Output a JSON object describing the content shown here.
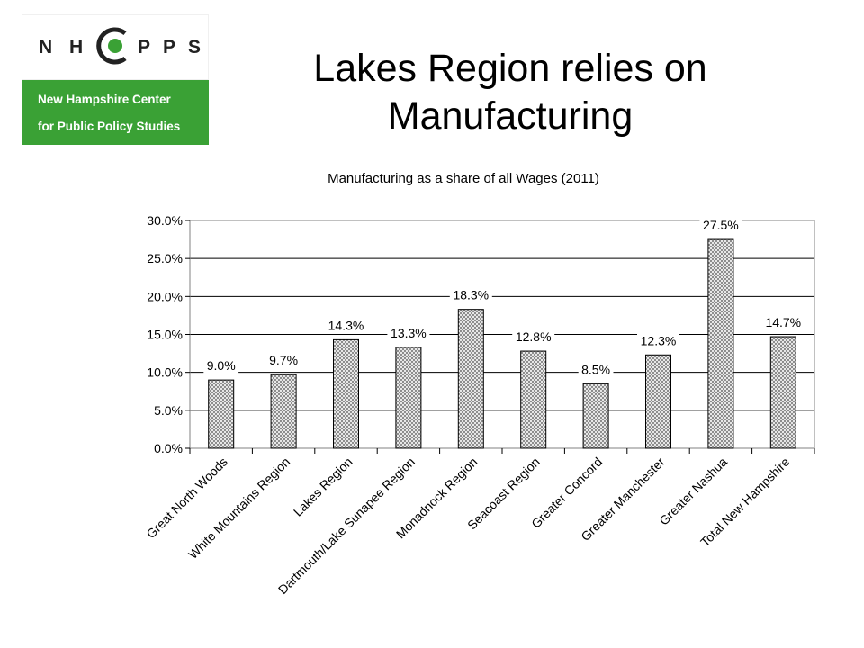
{
  "logo": {
    "letters": [
      "N",
      "H",
      "P",
      "P",
      "S"
    ],
    "line1": "New Hampshire Center",
    "line2": "for Public Policy Studies",
    "accent_color": "#3aa135"
  },
  "slide_title": "Lakes Region relies on Manufacturing",
  "chart_data": {
    "type": "bar",
    "title": "Manufacturing as a share of all Wages (2011)",
    "categories": [
      "Great North Woods",
      "White Mountains Region",
      "Lakes Region",
      "Dartmouth/Lake Sunapee Region",
      "Monadnock Region",
      "Seacoast Region",
      "Greater Concord",
      "Greater Manchester",
      "Greater Nashua",
      "Total New Hampshire"
    ],
    "values": [
      9.0,
      9.7,
      14.3,
      13.3,
      18.3,
      12.8,
      8.5,
      12.3,
      27.5,
      14.7
    ],
    "data_labels": [
      "9.0%",
      "9.7%",
      "14.3%",
      "13.3%",
      "18.3%",
      "12.8%",
      "8.5%",
      "12.3%",
      "27.5%",
      "14.7%"
    ],
    "yticks": [
      "0.0%",
      "5.0%",
      "10.0%",
      "15.0%",
      "20.0%",
      "25.0%",
      "30.0%"
    ],
    "ylim": [
      0,
      30
    ],
    "xlabel": "",
    "ylabel": "",
    "grid": true,
    "bar_pattern": "crosshatch"
  }
}
